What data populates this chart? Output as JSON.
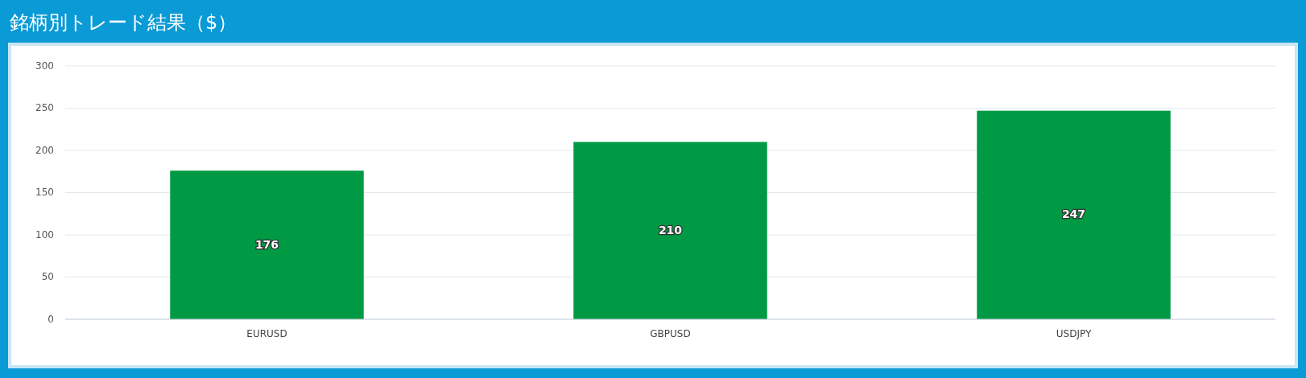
{
  "chart_data": {
    "type": "bar",
    "title": "銘柄別トレード結果（$）",
    "categories": [
      "EURUSD",
      "GBPUSD",
      "USDJPY"
    ],
    "values": [
      176,
      210,
      247
    ],
    "color": "#009a44",
    "ylim": [
      0,
      300
    ],
    "yticks": [
      0,
      50,
      100,
      150,
      200,
      250,
      300
    ],
    "grid": "y",
    "data_labels": true
  }
}
